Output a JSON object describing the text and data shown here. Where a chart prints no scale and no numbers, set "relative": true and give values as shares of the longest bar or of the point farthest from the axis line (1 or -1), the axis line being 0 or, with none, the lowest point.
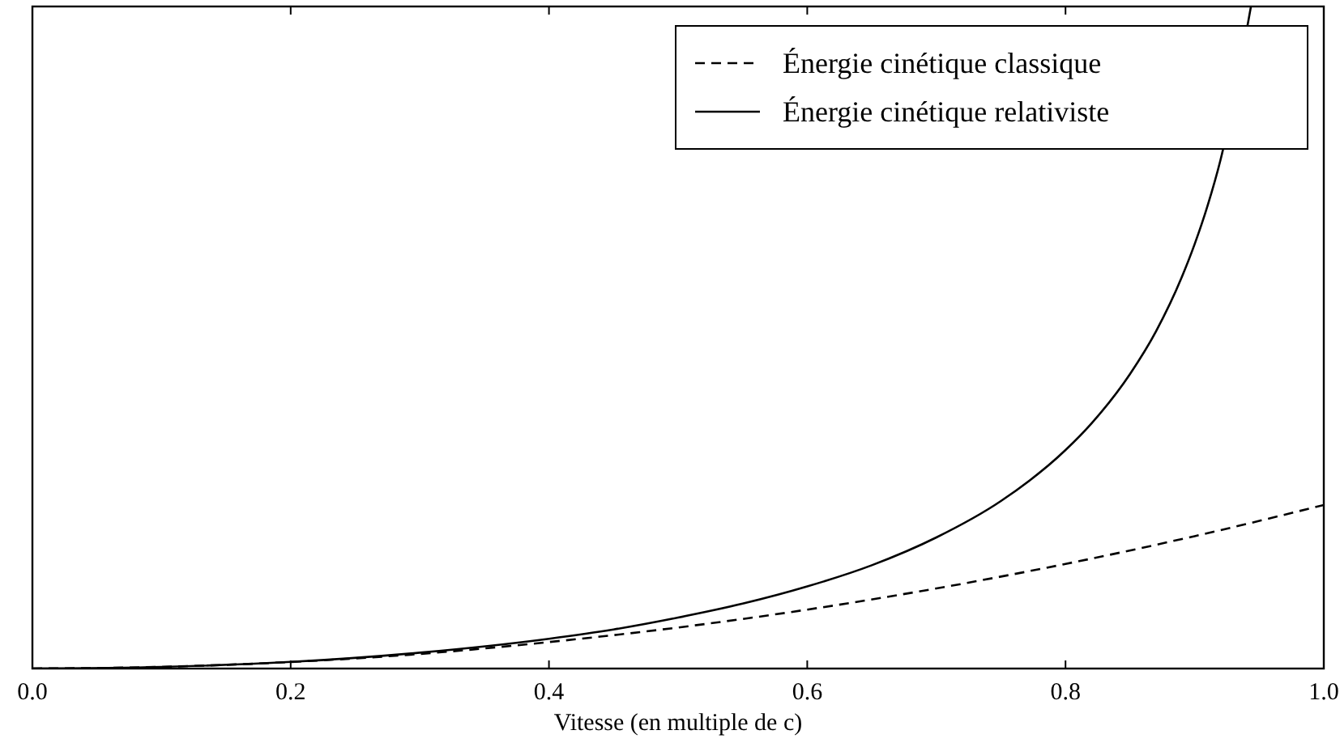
{
  "chart_data": {
    "type": "line",
    "relative": true,
    "xlabel": "Vitesse (en multiple de c)",
    "xlim": [
      0,
      1
    ],
    "xticks": [
      {
        "value": 0,
        "label": "0.0"
      },
      {
        "value": 0.2,
        "label": "0.2"
      },
      {
        "value": 0.4,
        "label": "0.4"
      },
      {
        "value": 0.6,
        "label": "0.6"
      },
      {
        "value": 0.8,
        "label": "0.8"
      },
      {
        "value": 1,
        "label": "1.0"
      }
    ],
    "legend": "top right",
    "grid": false,
    "series": [
      {
        "name": "Énergie cinétique classique",
        "color": "#000000",
        "line_style": "dashed",
        "x": [
          0,
          0.1,
          0.2,
          0.3,
          0.4,
          0.5,
          0.6,
          0.7,
          0.8,
          0.9,
          1
        ],
        "values": [
          0,
          0.0025,
          0.0099,
          0.022,
          0.04,
          0.062,
          0.089,
          0.121,
          0.158,
          0.2,
          0.247
        ]
      },
      {
        "name": "Énergie cinétique relativiste",
        "color": "#000000",
        "line_style": "solid",
        "x": [
          0,
          0.1,
          0.2,
          0.3,
          0.4,
          0.45,
          0.5,
          0.55,
          0.6,
          0.65,
          0.7,
          0.75,
          0.8,
          0.82,
          0.85,
          0.87,
          0.89,
          0.9,
          0.91,
          0.92,
          0.9436
        ],
        "values": [
          0,
          0.0025,
          0.01,
          0.024,
          0.045,
          0.059,
          0.077,
          0.098,
          0.124,
          0.156,
          0.198,
          0.253,
          0.33,
          0.37,
          0.445,
          0.509,
          0.591,
          0.641,
          0.699,
          0.768,
          1
        ]
      }
    ]
  }
}
